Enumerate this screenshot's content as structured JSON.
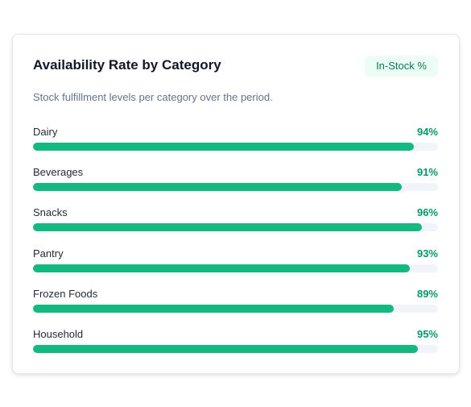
{
  "chart_data": {
    "type": "bar",
    "orientation": "horizontal",
    "title": "Availability Rate by Category",
    "badge": "In-Stock %",
    "subtitle": "Stock fulfillment levels per category over the period.",
    "categories": [
      "Dairy",
      "Beverages",
      "Snacks",
      "Pantry",
      "Frozen Foods",
      "Household"
    ],
    "values": [
      94,
      91,
      96,
      93,
      89,
      95
    ],
    "value_labels": [
      "94%",
      "91%",
      "96%",
      "93%",
      "89%",
      "95%"
    ],
    "xlim": [
      0,
      100
    ],
    "color": "#14b881"
  }
}
